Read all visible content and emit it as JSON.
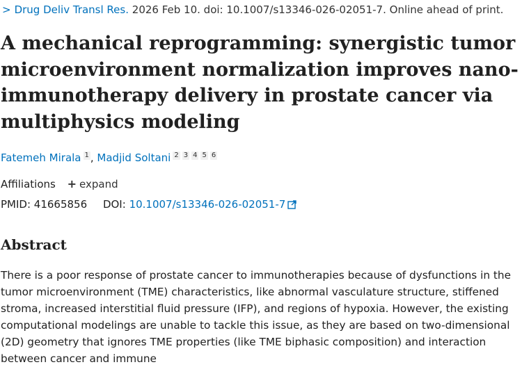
{
  "citation": {
    "chevron": ">",
    "journal": "Drug Deliv Transl Res.",
    "details": "2026 Feb 10. doi: 10.1007/s13346-026-02051-7. Online ahead of print."
  },
  "article": {
    "title": "A mechanical reprogramming: synergistic tumor microenvironment normalization improves nano-immunotherapy delivery in prostate cancer via multiphysics modeling"
  },
  "authors": [
    {
      "name": "Fatemeh Mirala",
      "affiliations": [
        "1"
      ]
    },
    {
      "name": "Madjid Soltani",
      "affiliations": [
        "2",
        "3",
        "4",
        "5",
        "6"
      ]
    }
  ],
  "affiliations": {
    "label": "Affiliations",
    "expand_label": "expand"
  },
  "identifiers": {
    "pmid_label": "PMID:",
    "pmid": "41665856",
    "doi_label": "DOI:",
    "doi": "10.1007/s13346-026-02051-7"
  },
  "abstract": {
    "heading": "Abstract",
    "text": "There is a poor response of prostate cancer to immunotherapies because of dysfunctions in the tumor microenvironment (TME) characteristics, like abnormal vasculature structure, stiffened stroma, increased interstitial fluid pressure (IFP), and regions of hypoxia. However, the existing computational modelings are unable to tackle this issue, as they are based on two-dimensional (2D) geometry that ignores TME properties (like TME biphasic composition) and interaction between cancer and immune"
  },
  "colors": {
    "link": "#0071bc",
    "text": "#212121"
  },
  "icons": {
    "external_link": "external-link-icon",
    "expand": "plus-icon"
  }
}
